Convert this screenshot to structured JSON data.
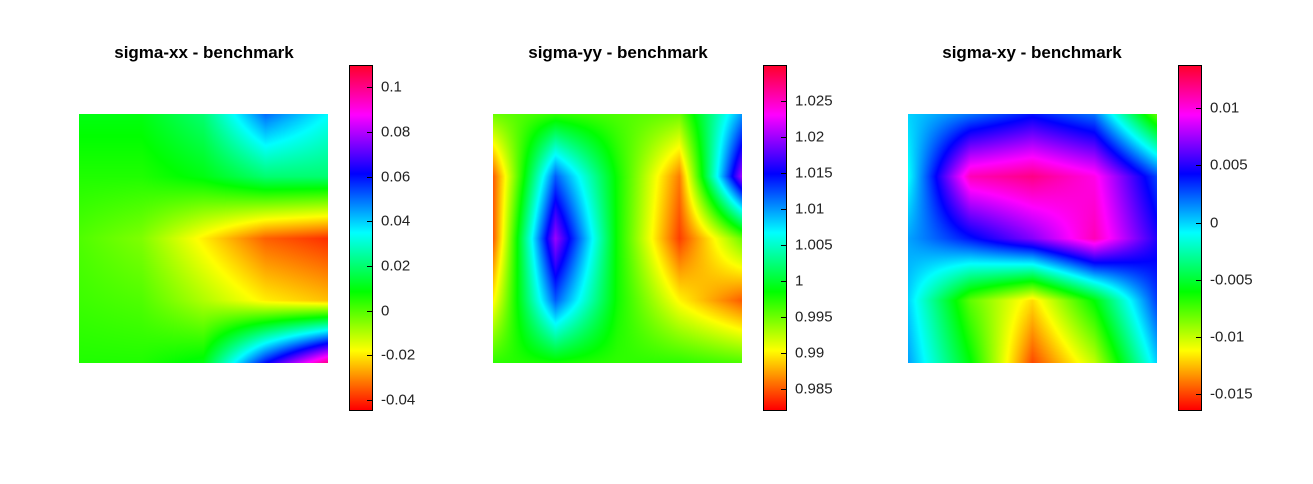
{
  "chart_data": [
    {
      "type": "heatmap",
      "title": "sigma-xx - benchmark",
      "colormap": "hsv",
      "clim": [
        -0.045,
        0.11
      ],
      "colorbar_ticks": [
        -0.04,
        -0.02,
        0,
        0.02,
        0.04,
        0.06,
        0.08,
        0.1
      ],
      "colorbar_tick_labels": [
        "-0.04",
        "-0.02",
        "0",
        "0.02",
        "0.04",
        "0.06",
        "0.08",
        "0.1"
      ],
      "grid_rows": 5,
      "grid_cols": 5,
      "z_approx": [
        [
          0.01,
          0.01,
          0.02,
          0.05,
          0.035
        ],
        [
          0.005,
          0.005,
          0.01,
          0.02,
          0.02
        ],
        [
          0.0,
          -0.005,
          -0.02,
          -0.035,
          -0.04
        ],
        [
          0.002,
          0.0,
          -0.01,
          -0.02,
          -0.025
        ],
        [
          0.005,
          0.005,
          0.01,
          0.06,
          0.1
        ]
      ]
    },
    {
      "type": "heatmap",
      "title": "sigma-yy - benchmark",
      "colormap": "hsv",
      "clim": [
        0.982,
        1.03
      ],
      "colorbar_ticks": [
        0.985,
        0.99,
        0.995,
        1,
        1.005,
        1.01,
        1.015,
        1.02,
        1.025
      ],
      "colorbar_tick_labels": [
        "0.985",
        "0.99",
        "0.995",
        "1",
        "1.005",
        "1.01",
        "1.015",
        "1.02",
        "1.025"
      ],
      "grid_rows": 5,
      "grid_cols": 5,
      "z_approx": [
        [
          0.995,
          0.997,
          0.996,
          0.995,
          1.01
        ],
        [
          0.985,
          1.012,
          0.998,
          0.986,
          1.02
        ],
        [
          0.985,
          1.02,
          0.998,
          0.984,
          0.995
        ],
        [
          0.99,
          1.012,
          0.998,
          0.99,
          0.985
        ],
        [
          0.997,
          0.998,
          0.997,
          0.997,
          0.996
        ]
      ]
    },
    {
      "type": "heatmap",
      "title": "sigma-xy - benchmark",
      "colormap": "hsv",
      "clim": [
        -0.0165,
        0.0138
      ],
      "colorbar_ticks": [
        -0.015,
        -0.01,
        -0.005,
        0,
        0.005,
        0.01
      ],
      "colorbar_tick_labels": [
        "-0.015",
        "-0.01",
        "-0.005",
        "0",
        "0.005",
        "0.01"
      ],
      "grid_rows": 5,
      "grid_cols": 5,
      "z_approx": [
        [
          0.0,
          0.002,
          0.004,
          0.002,
          -0.008
        ],
        [
          -0.001,
          0.011,
          0.012,
          0.01,
          0.003
        ],
        [
          0.001,
          0.004,
          0.007,
          0.011,
          0.005
        ],
        [
          0.0,
          -0.008,
          -0.012,
          -0.006,
          0.003
        ],
        [
          0.001,
          -0.006,
          -0.015,
          -0.01,
          0.0
        ]
      ]
    }
  ]
}
